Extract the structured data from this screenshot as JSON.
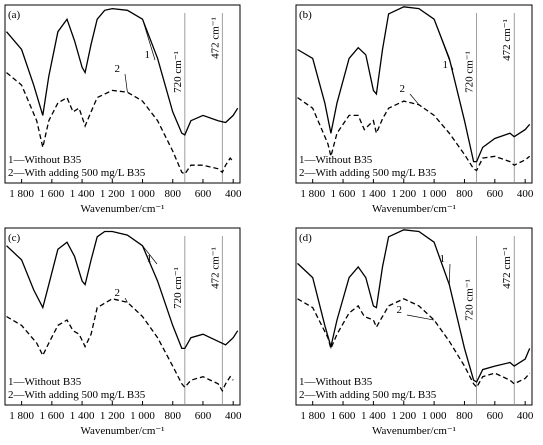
{
  "chart_data": [
    {
      "type": "line",
      "panel": "(a)",
      "xlabel": "Wavenumber/cm⁻¹",
      "xlim": [
        1910,
        355
      ],
      "xticks": [
        {
          "value": 1800,
          "label": "1 800"
        },
        {
          "value": 1600,
          "label": "1 600"
        },
        {
          "value": 1400,
          "label": "1 400"
        },
        {
          "value": 1200,
          "label": "1 200"
        },
        {
          "value": 1000,
          "label": "1 000"
        },
        800,
        600,
        400
      ],
      "ylim": [
        0,
        100
      ],
      "markers": [
        {
          "x": 720,
          "label": "720 cm⁻¹"
        },
        {
          "x": 472,
          "label": "472 cm⁻¹"
        }
      ],
      "series": [
        {
          "name": "1—Without B35",
          "label": "1",
          "color": "#000000",
          "dash": false,
          "x": [
            1900,
            1800,
            1720,
            1660,
            1620,
            1560,
            1500,
            1450,
            1400,
            1380,
            1340,
            1300,
            1250,
            1200,
            1100,
            1000,
            900,
            800,
            740,
            720,
            680,
            600,
            500,
            450,
            400,
            370
          ],
          "values": [
            85,
            75,
            55,
            38,
            60,
            85,
            92,
            80,
            65,
            62,
            78,
            92,
            97,
            98,
            97,
            92,
            70,
            40,
            28,
            27,
            35,
            38,
            35,
            34,
            38,
            42
          ]
        },
        {
          "name": "2—With adding 500 mg/L B35",
          "label": "2",
          "color": "#000000",
          "dash": true,
          "x": [
            1900,
            1800,
            1700,
            1660,
            1620,
            1560,
            1500,
            1460,
            1420,
            1380,
            1340,
            1300,
            1200,
            1100,
            1000,
            900,
            800,
            740,
            720,
            680,
            600,
            500,
            472,
            450,
            420,
            400
          ],
          "values": [
            62,
            55,
            35,
            20,
            35,
            45,
            48,
            40,
            42,
            32,
            40,
            48,
            52,
            51,
            46,
            35,
            18,
            6,
            5,
            10,
            10,
            8,
            6,
            10,
            14,
            12
          ]
        }
      ]
    },
    {
      "type": "line",
      "panel": "(b)",
      "xlabel": "Wavenumber/cm⁻¹",
      "xlim": [
        1910,
        355
      ],
      "xticks": [
        {
          "value": 1800,
          "label": "1 800"
        },
        {
          "value": 1600,
          "label": "1 600"
        },
        {
          "value": 1400,
          "label": "1 400"
        },
        {
          "value": 1200,
          "label": "1 200"
        },
        {
          "value": 1000,
          "label": "1 000"
        },
        800,
        600,
        400
      ],
      "ylim": [
        0,
        100
      ],
      "markers": [
        {
          "x": 720,
          "label": "720 cm⁻¹"
        },
        {
          "x": 472,
          "label": "472 cm⁻¹"
        }
      ],
      "series": [
        {
          "name": "1—Without B35",
          "label": "1",
          "color": "#000000",
          "dash": false,
          "x": [
            1900,
            1800,
            1720,
            1680,
            1640,
            1560,
            1500,
            1450,
            1400,
            1380,
            1340,
            1300,
            1200,
            1100,
            1000,
            900,
            800,
            740,
            720,
            680,
            600,
            500,
            472,
            400,
            370
          ],
          "values": [
            75,
            70,
            45,
            28,
            45,
            70,
            76,
            72,
            52,
            50,
            75,
            95,
            99,
            98,
            92,
            70,
            35,
            12,
            12,
            20,
            25,
            28,
            26,
            30,
            33
          ]
        },
        {
          "name": "2—With adding 500 mg/L B35",
          "label": "2",
          "color": "#000000",
          "dash": true,
          "x": [
            1900,
            1800,
            1700,
            1680,
            1640,
            1560,
            1500,
            1460,
            1400,
            1380,
            1340,
            1300,
            1200,
            1100,
            1000,
            900,
            800,
            740,
            720,
            680,
            600,
            500,
            472,
            400,
            370
          ],
          "values": [
            48,
            42,
            22,
            15,
            28,
            38,
            38,
            30,
            35,
            28,
            36,
            42,
            46,
            44,
            38,
            28,
            16,
            8,
            7,
            14,
            15,
            12,
            10,
            13,
            15
          ]
        }
      ]
    },
    {
      "type": "line",
      "panel": "(c)",
      "xlabel": "Wavenumber/cm⁻¹",
      "xlim": [
        1910,
        355
      ],
      "xticks": [
        {
          "value": 1800,
          "label": "1 800"
        },
        {
          "value": 1600,
          "label": "1 600"
        },
        {
          "value": 1400,
          "label": "1 400"
        },
        {
          "value": 1200,
          "label": "1 200"
        },
        {
          "value": 1000,
          "label": "1 000"
        },
        800,
        600,
        400
      ],
      "ylim": [
        0,
        100
      ],
      "markers": [
        {
          "x": 720,
          "label": "720 cm⁻¹"
        },
        {
          "x": 472,
          "label": "472 cm⁻¹"
        }
      ],
      "series": [
        {
          "name": "1—Without B35",
          "label": "1",
          "color": "#000000",
          "dash": false,
          "x": [
            1900,
            1800,
            1720,
            1660,
            1620,
            1560,
            1500,
            1450,
            1400,
            1380,
            1340,
            1300,
            1250,
            1200,
            1100,
            1000,
            900,
            800,
            740,
            720,
            680,
            600,
            500,
            450,
            400,
            370
          ],
          "values": [
            90,
            82,
            65,
            55,
            68,
            88,
            92,
            84,
            70,
            68,
            82,
            95,
            98,
            98,
            96,
            90,
            70,
            45,
            32,
            32,
            38,
            40,
            36,
            34,
            38,
            42
          ]
        },
        {
          "name": "2—With adding 500 mg/L B35",
          "label": "2",
          "color": "#000000",
          "dash": true,
          "x": [
            1900,
            1800,
            1700,
            1660,
            1620,
            1560,
            1500,
            1460,
            1420,
            1380,
            1340,
            1300,
            1200,
            1100,
            1000,
            900,
            800,
            740,
            720,
            680,
            600,
            500,
            472,
            450,
            420,
            400
          ],
          "values": [
            50,
            45,
            35,
            28,
            35,
            45,
            48,
            42,
            40,
            33,
            40,
            55,
            60,
            58,
            50,
            38,
            22,
            12,
            10,
            14,
            16,
            12,
            8,
            12,
            16,
            14
          ]
        }
      ]
    },
    {
      "type": "line",
      "panel": "(d)",
      "xlabel": "Wavenumber/cm⁻¹",
      "xlim": [
        1910,
        355
      ],
      "xticks": [
        {
          "value": 1800,
          "label": "1 800"
        },
        {
          "value": 1600,
          "label": "1 600"
        },
        {
          "value": 1400,
          "label": "1 400"
        },
        {
          "value": 1200,
          "label": "1 200"
        },
        {
          "value": 1000,
          "label": "1 000"
        },
        800,
        600,
        400
      ],
      "ylim": [
        0,
        100
      ],
      "markers": [
        {
          "x": 720,
          "label": "720 cm⁻¹"
        },
        {
          "x": 472,
          "label": "472 cm⁻¹"
        }
      ],
      "series": [
        {
          "name": "1—Without B35",
          "label": "1",
          "color": "#000000",
          "dash": false,
          "x": [
            1900,
            1800,
            1720,
            1680,
            1640,
            1560,
            1500,
            1450,
            1400,
            1380,
            1340,
            1300,
            1200,
            1100,
            1000,
            900,
            800,
            740,
            720,
            680,
            600,
            500,
            472,
            400,
            370
          ],
          "values": [
            80,
            72,
            45,
            33,
            48,
            72,
            78,
            72,
            56,
            55,
            78,
            95,
            99,
            98,
            92,
            68,
            32,
            14,
            13,
            20,
            22,
            24,
            22,
            26,
            32
          ]
        },
        {
          "name": "2—With adding 500 mg/L B35",
          "label": "2",
          "color": "#000000",
          "dash": true,
          "x": [
            1900,
            1800,
            1700,
            1680,
            1640,
            1560,
            1500,
            1460,
            1400,
            1380,
            1340,
            1300,
            1200,
            1100,
            1000,
            900,
            800,
            740,
            720,
            680,
            600,
            500,
            472,
            400,
            370
          ],
          "values": [
            60,
            55,
            38,
            32,
            40,
            52,
            56,
            50,
            48,
            44,
            50,
            56,
            60,
            56,
            48,
            36,
            22,
            12,
            10,
            16,
            18,
            14,
            12,
            15,
            18
          ]
        }
      ]
    }
  ]
}
